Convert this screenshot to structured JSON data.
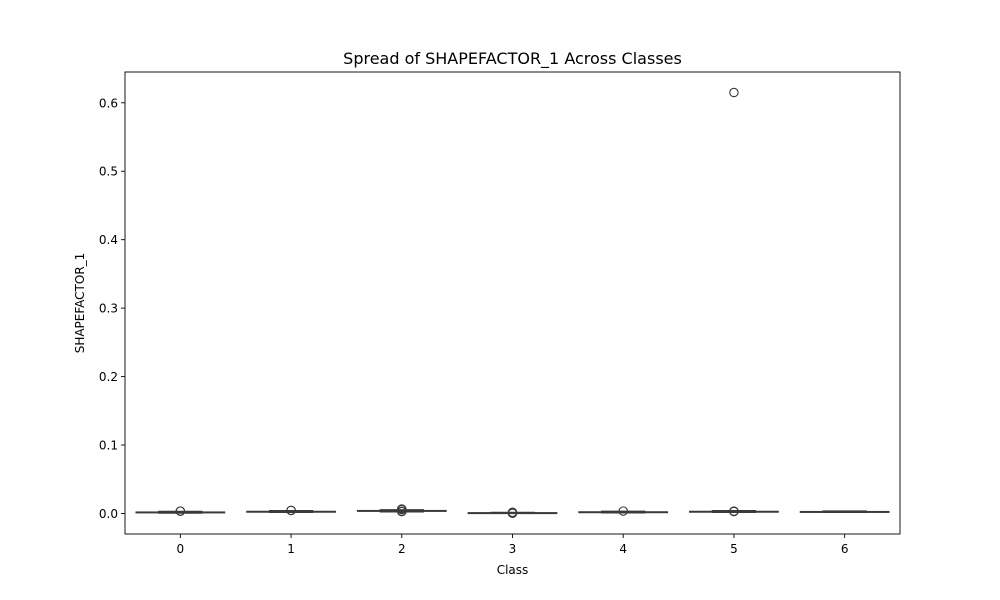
{
  "chart_data": {
    "type": "boxplot",
    "title": "Spread of SHAPEFACTOR_1 Across Classes",
    "xlabel": "Class",
    "ylabel": "SHAPEFACTOR_1",
    "categories": [
      "0",
      "1",
      "2",
      "3",
      "4",
      "5",
      "6"
    ],
    "ylim": [
      -0.03,
      0.645
    ],
    "yticks": [
      0.0,
      0.1,
      0.2,
      0.3,
      0.4,
      0.5,
      0.6
    ],
    "ytick_labels": [
      "0.0",
      "0.1",
      "0.2",
      "0.3",
      "0.4",
      "0.5",
      "0.6"
    ],
    "grid": false,
    "legend": "none",
    "boxes": [
      {
        "category": "0",
        "whisker_low": 0.0005,
        "q1": 0.0012,
        "median": 0.0016,
        "q3": 0.0021,
        "whisker_high": 0.0031,
        "outliers": [
          0.0033,
          0.0035
        ]
      },
      {
        "category": "1",
        "whisker_low": 0.0016,
        "q1": 0.0022,
        "median": 0.0026,
        "q3": 0.0031,
        "whisker_high": 0.0042,
        "outliers": [
          0.0044,
          0.0046
        ]
      },
      {
        "category": "2",
        "whisker_low": 0.0022,
        "q1": 0.0032,
        "median": 0.0037,
        "q3": 0.0043,
        "whisker_high": 0.0055,
        "outliers": [
          0.0026,
          0.0032,
          0.0058,
          0.0061,
          0.0065
        ]
      },
      {
        "category": "3",
        "whisker_low": 0.0002,
        "q1": 0.0006,
        "median": 0.0008,
        "q3": 0.0011,
        "whisker_high": 0.0016,
        "outliers": [
          0.0003,
          0.0005,
          0.0009,
          0.0013,
          0.0017
        ]
      },
      {
        "category": "4",
        "whisker_low": 0.0008,
        "q1": 0.0015,
        "median": 0.0019,
        "q3": 0.0024,
        "whisker_high": 0.0033,
        "outliers": [
          0.0035
        ]
      },
      {
        "category": "5",
        "whisker_low": 0.0016,
        "q1": 0.0022,
        "median": 0.0026,
        "q3": 0.0031,
        "whisker_high": 0.0042,
        "outliers": [
          0.0029,
          0.0034,
          0.615
        ]
      },
      {
        "category": "6",
        "whisker_low": 0.0016,
        "q1": 0.0021,
        "median": 0.0024,
        "q3": 0.0028,
        "whisker_high": 0.0036,
        "outliers": []
      }
    ],
    "colors": {
      "box_fill": "#ffffff",
      "line": "#3a3a3a",
      "axis": "#000000"
    }
  }
}
